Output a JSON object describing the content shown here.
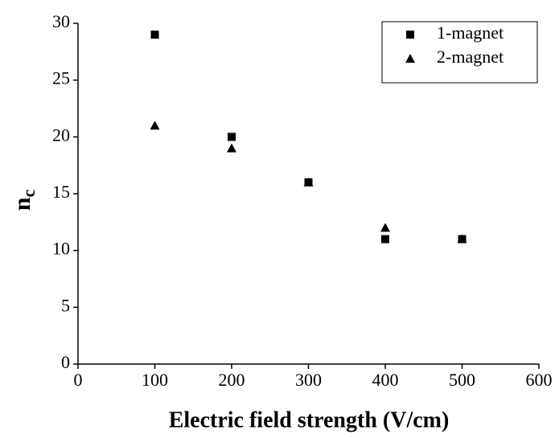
{
  "chart_data": {
    "type": "scatter",
    "xlabel": "Electric field strength (V/cm)",
    "ylabel_main": "n",
    "ylabel_subscript": "c",
    "xlim": [
      0,
      600
    ],
    "ylim": [
      0,
      30
    ],
    "xticks": [
      0,
      100,
      200,
      300,
      400,
      500,
      600
    ],
    "yticks": [
      0,
      5,
      10,
      15,
      20,
      25,
      30
    ],
    "legend": "upper right",
    "series": [
      {
        "name": "1-magnet",
        "color": "#000000",
        "marker": "square",
        "x": [
          100,
          200,
          300,
          400,
          500
        ],
        "values": [
          29,
          20,
          16,
          11,
          11
        ]
      },
      {
        "name": "2-magnet",
        "color": "#000000",
        "marker": "triangle",
        "x": [
          100,
          200,
          300,
          400,
          500
        ],
        "values": [
          21,
          19,
          16,
          12,
          11
        ]
      }
    ]
  }
}
